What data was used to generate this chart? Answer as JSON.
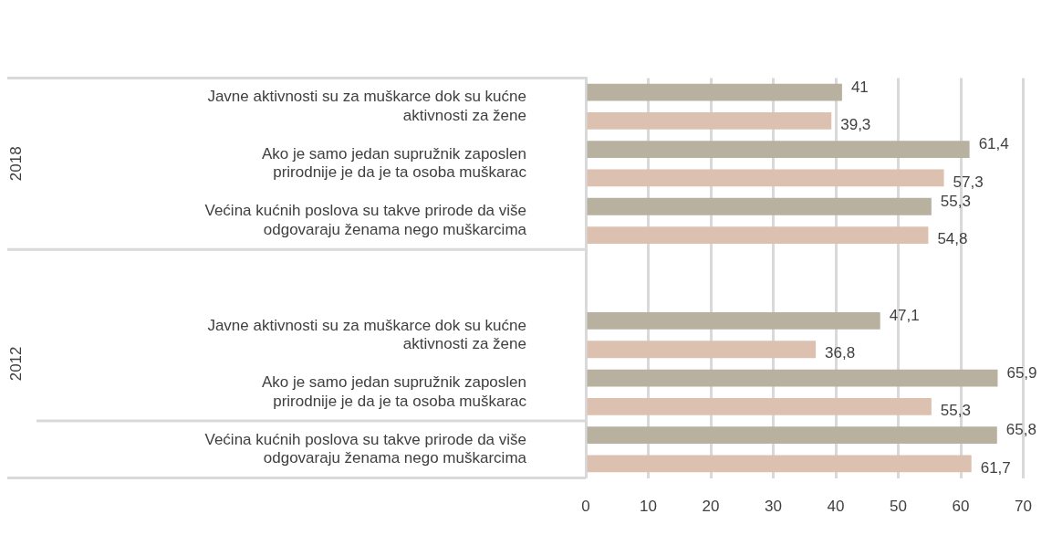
{
  "chart_data": {
    "type": "bar",
    "orientation": "horizontal",
    "categories": [
      "Javne aktivnosti su za muškarce dok su kućne aktivnosti za žene",
      "Ako je samo jedan supružnik zaposlen prirodnije je da je ta osoba muškarac",
      "Većina kućnih poslova su takve prirode da više odgovaraju ženama nego muškarcima",
      null,
      "Javne aktivnosti su za muškarce dok su kućne aktivnosti za žene",
      "Ako je samo jedan supružnik zaposlen prirodnije je da je ta osoba muškarac",
      "Većina kućnih poslova su takve prirode da više odgovaraju ženama nego muškarcima"
    ],
    "series": [
      {
        "color": "#b8b1a0",
        "values": [
          41,
          61.4,
          55.3,
          null,
          47.1,
          65.9,
          65.8
        ],
        "value_labels": [
          "41",
          "61,4",
          "55,3",
          null,
          "47,1",
          "65,9",
          "65,8"
        ]
      },
      {
        "color": "#dcc0b0",
        "values": [
          39.3,
          57.3,
          54.8,
          null,
          36.8,
          55.3,
          61.7
        ],
        "value_labels": [
          "39,3",
          "57,3",
          "54,8",
          null,
          "36,8",
          "55,3",
          "61,7"
        ]
      }
    ],
    "annotations": [
      "2018",
      "2012"
    ],
    "xlim": [
      0,
      70
    ],
    "xticks": [
      0,
      10,
      20,
      30,
      40,
      50,
      60,
      70
    ],
    "grid": "x",
    "legend": false
  }
}
